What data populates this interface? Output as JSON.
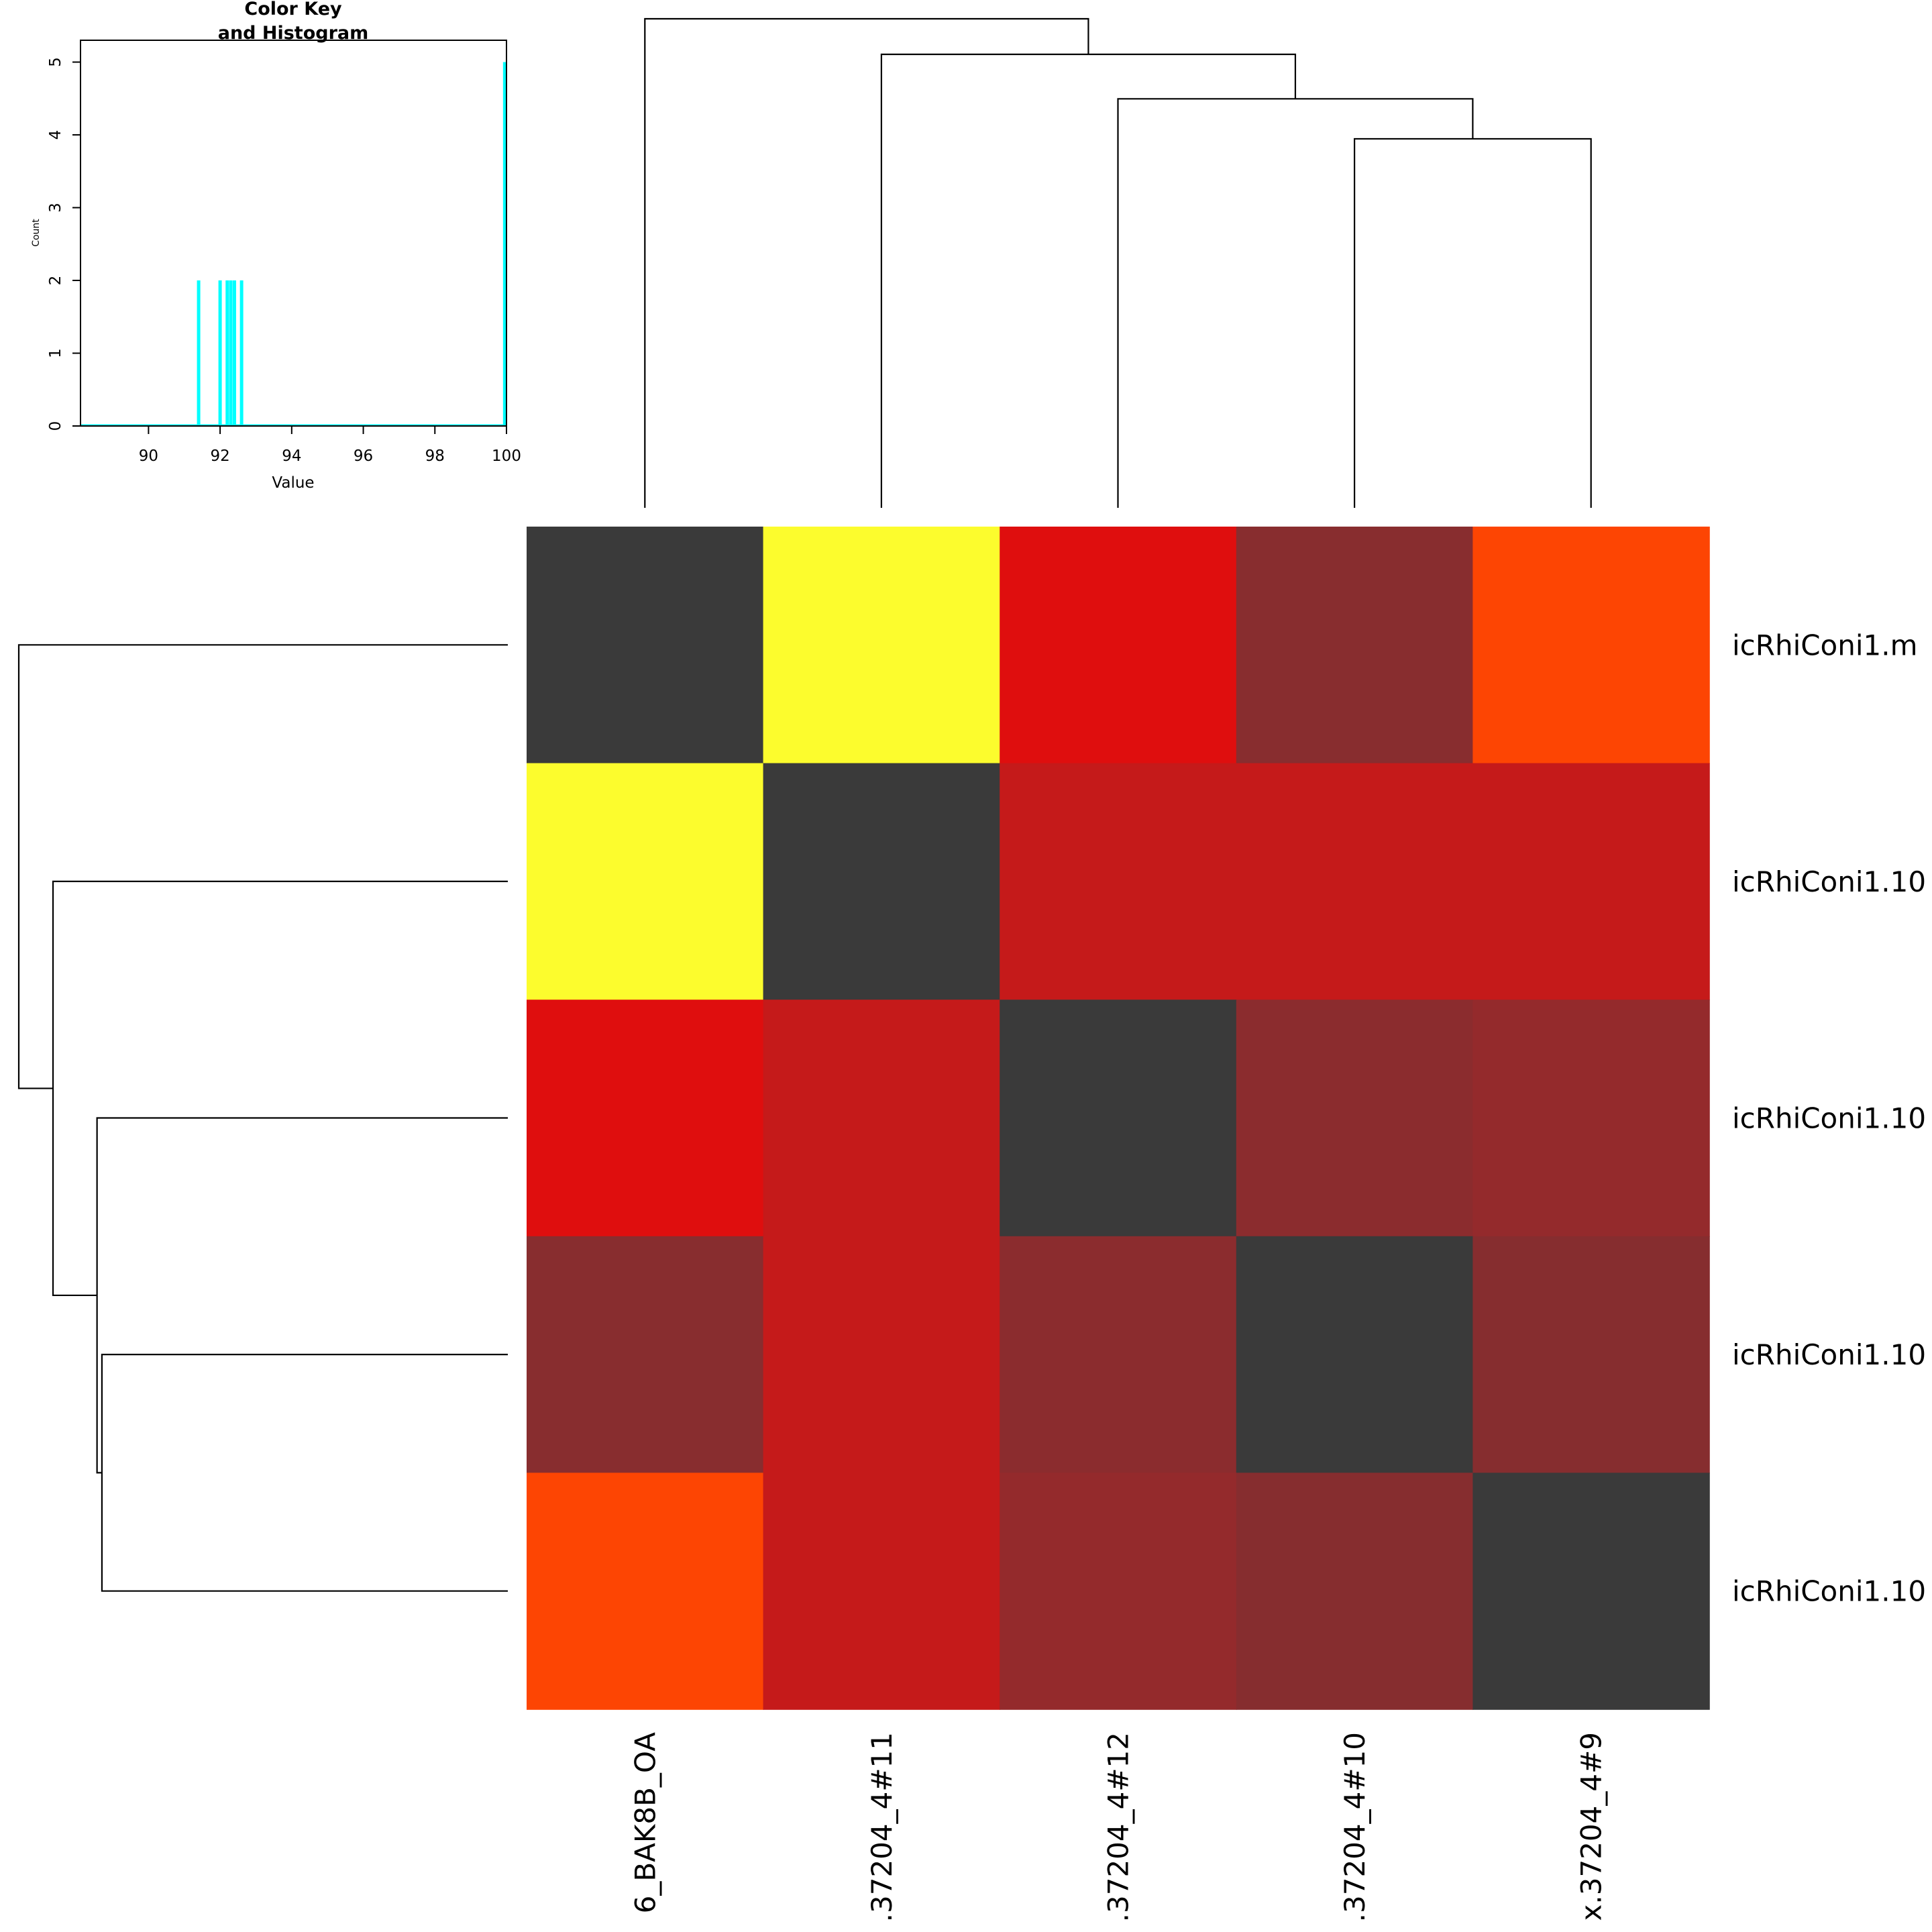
{
  "chart_data": {
    "type": "heatmap",
    "title": "",
    "row_labels": [
      "icRhiConi1.m",
      "icRhiConi1.10",
      "icRhiConi1.10",
      "icRhiConi1.10",
      "icRhiConi1.10"
    ],
    "col_labels": [
      "6_BAK8B_OA",
      ".37204_4#11",
      ".37204_4#12",
      ".37204_4#10",
      "x.37204_4#9"
    ],
    "values": [
      [
        100.0,
        91.4,
        92.1,
        92.6,
        91.9
      ],
      [
        91.4,
        100.0,
        92.3,
        92.3,
        92.3
      ],
      [
        92.1,
        92.3,
        100.0,
        92.6,
        92.5
      ],
      [
        92.6,
        92.3,
        92.6,
        100.0,
        92.6
      ],
      [
        91.9,
        92.3,
        92.5,
        92.6,
        100.0
      ]
    ],
    "cell_colors": [
      [
        "#3a3a3a",
        "#fcfc2d",
        "#df0e0e",
        "#882d2f",
        "#fd4503"
      ],
      [
        "#fcfc2d",
        "#3a3a3a",
        "#c51a1a",
        "#c51a1a",
        "#c51a1a"
      ],
      [
        "#df0e0e",
        "#c51a1a",
        "#3a3a3a",
        "#8b2c2e",
        "#942a2c"
      ],
      [
        "#882d2f",
        "#c51a1a",
        "#8b2c2e",
        "#3a3a3a",
        "#862d2f"
      ],
      [
        "#fd4503",
        "#c51a1a",
        "#942a2c",
        "#862d2f",
        "#3a3a3a"
      ]
    ],
    "col_dendrogram": {
      "merges": [
        {
          "left": 3,
          "right": 4,
          "height": 0.083
        },
        {
          "left": 2,
          "right": "m0",
          "height": 0.092
        },
        {
          "left": 1,
          "right": "m1",
          "height": 0.102
        },
        {
          "left": 0,
          "right": "m2",
          "height": 0.11
        }
      ],
      "max_height": 0.11
    },
    "row_dendrogram": {
      "merges": [
        {
          "left": 3,
          "right": 4,
          "height": 0.083
        },
        {
          "left": 2,
          "right": "m0",
          "height": 0.084
        },
        {
          "left": 1,
          "right": "m1",
          "height": 0.093
        },
        {
          "left": 0,
          "right": "m2",
          "height": 0.1
        }
      ],
      "max_height": 0.1
    },
    "color_key": {
      "title_line1": "Color Key",
      "title_line2": "and Histogram",
      "xlabel": "Value",
      "ylabel": "Count",
      "xlim": [
        88.1,
        100
      ],
      "ylim": [
        0,
        5.3
      ],
      "x_ticks": [
        90,
        92,
        94,
        96,
        98,
        100
      ],
      "y_ticks": [
        0,
        1,
        2,
        3,
        4,
        5
      ],
      "line_color": "#00ffff",
      "histogram": [
        {
          "x": 91.4,
          "count": 2
        },
        {
          "x": 92.0,
          "count": 2
        },
        {
          "x": 92.2,
          "count": 2
        },
        {
          "x": 92.3,
          "count": 2
        },
        {
          "x": 92.4,
          "count": 2
        },
        {
          "x": 92.6,
          "count": 2
        },
        {
          "x": 99.95,
          "count": 5
        }
      ]
    }
  }
}
